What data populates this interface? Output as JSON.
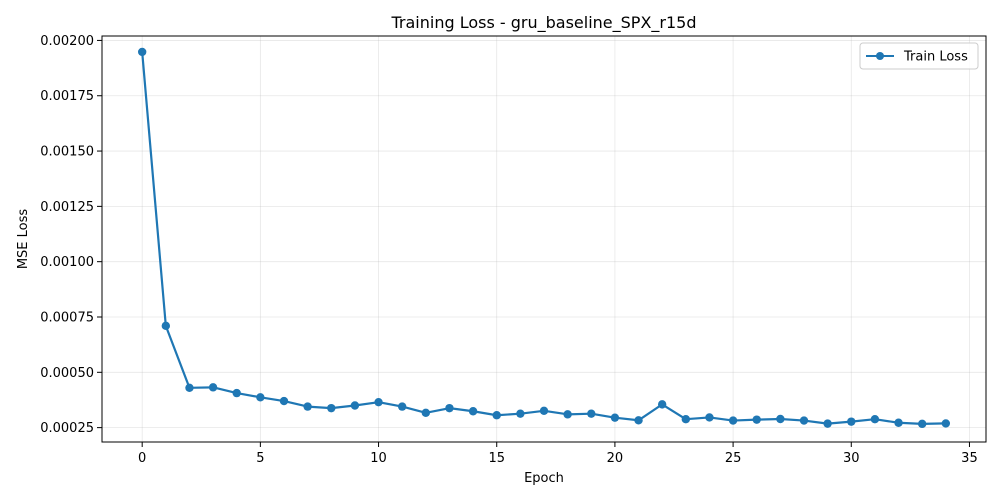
{
  "chart_data": {
    "type": "line",
    "title": "Training Loss - gru_baseline_SPX_r15d",
    "xlabel": "Epoch",
    "ylabel": "MSE Loss",
    "xlim": [
      -1.7,
      35.7
    ],
    "ylim": [
      0.000185,
      0.00202
    ],
    "xticks": [
      0,
      5,
      10,
      15,
      20,
      25,
      30,
      35
    ],
    "xtick_labels": [
      "0",
      "5",
      "10",
      "15",
      "20",
      "25",
      "30",
      "35"
    ],
    "yticks": [
      0.00025,
      0.0005,
      0.00075,
      0.001,
      0.00125,
      0.0015,
      0.00175,
      0.002
    ],
    "ytick_labels": [
      "0.00025",
      "0.00050",
      "0.00075",
      "0.00100",
      "0.00125",
      "0.00150",
      "0.00175",
      "0.00200"
    ],
    "grid": true,
    "legend_position": "top-right",
    "series": [
      {
        "name": "Train Loss",
        "color": "#1f77b4",
        "marker": "circle",
        "x": [
          0,
          1,
          2,
          3,
          4,
          5,
          6,
          7,
          8,
          9,
          10,
          11,
          12,
          13,
          14,
          15,
          16,
          17,
          18,
          19,
          20,
          21,
          22,
          23,
          24,
          25,
          26,
          27,
          28,
          29,
          30,
          31,
          32,
          33,
          34
        ],
        "values": [
          0.001948,
          0.00071,
          0.00043,
          0.000432,
          0.000406,
          0.000387,
          0.00037,
          0.000345,
          0.000338,
          0.00035,
          0.000365,
          0.000345,
          0.000317,
          0.000338,
          0.000324,
          0.000306,
          0.000313,
          0.000326,
          0.00031,
          0.000313,
          0.000295,
          0.000283,
          0.000355,
          0.000288,
          0.000296,
          0.000282,
          0.000286,
          0.000289,
          0.000282,
          0.000268,
          0.000277,
          0.000288,
          0.000272,
          0.000267,
          0.000269
        ]
      }
    ]
  }
}
